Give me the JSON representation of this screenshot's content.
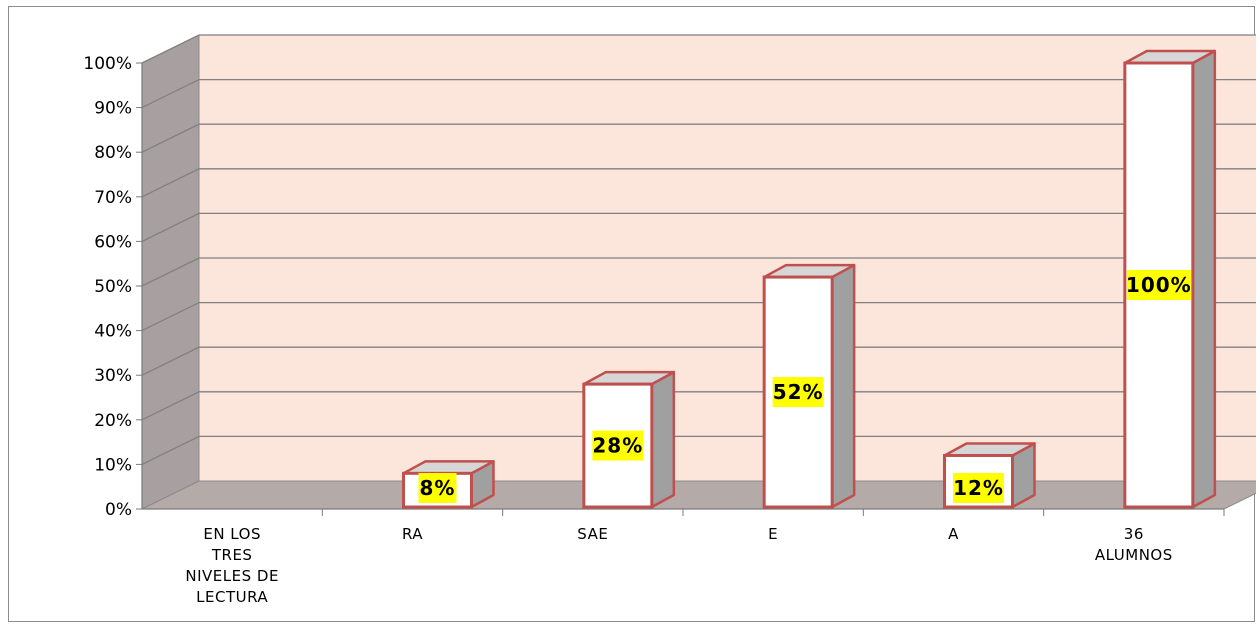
{
  "chart_data": {
    "type": "bar",
    "categories": [
      [
        "EN LOS",
        "TRES",
        "NIVELES DE",
        "LECTURA"
      ],
      [
        "RA"
      ],
      [
        "SAE"
      ],
      [
        "E"
      ],
      [
        "A"
      ],
      [
        "36",
        "ALUMNOS"
      ]
    ],
    "values": [
      0,
      8,
      28,
      52,
      12,
      100
    ],
    "data_labels": [
      "",
      "8%",
      "28%",
      "52%",
      "12%",
      "100%"
    ],
    "ylim": [
      0,
      100
    ],
    "yticks": [
      "0%",
      "10%",
      "20%",
      "30%",
      "40%",
      "50%",
      "60%",
      "70%",
      "80%",
      "90%",
      "100%"
    ],
    "grid": true,
    "title": "",
    "xlabel": "",
    "ylabel": ""
  },
  "colors": {
    "wall": "#fce6dc",
    "side_wall": "#a8a0a0",
    "floor": "#b4aaa8",
    "bar_front": "#ffffff",
    "bar_side": "#a0a0a0",
    "bar_top": "#d6d6d6",
    "bar_edge": "#c0504d",
    "label_bg": "#ffff00",
    "gridline": "#808080"
  }
}
